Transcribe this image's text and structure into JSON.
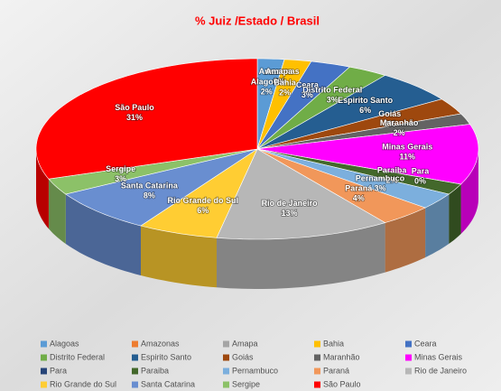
{
  "chart_data": {
    "type": "pie3d",
    "title": "% Juiz /Estado  / Brasil",
    "categories": [
      "Alagoas",
      "Amazonas",
      "Amapa",
      "Bahia",
      "Ceara",
      "Distrito Federal",
      "Espirito Santo",
      "Goiás",
      "Maranhão",
      "Minas Gerais",
      "Para",
      "Paraiba",
      "Pernambuco",
      "Paraná",
      "Rio de Janeiro",
      "Rio Grande do Sul",
      "Santa Catarina",
      "Sergipe",
      "São Paulo"
    ],
    "values": [
      2,
      0,
      0,
      2,
      3,
      3,
      6,
      3,
      2,
      11,
      0,
      2,
      3,
      4,
      13,
      6,
      8,
      3,
      31
    ],
    "value_labels": [
      "2%",
      "0%",
      "0%",
      "2%",
      "3%",
      "3%",
      "6%",
      "3%",
      "2%",
      "11%",
      "0%",
      "2%",
      "3%",
      "4%",
      "13%",
      "6%",
      "8%",
      "3%",
      "31%"
    ],
    "colors": [
      "#5b9bd5",
      "#ed7d31",
      "#a5a5a5",
      "#ffc000",
      "#4472c4",
      "#70ad47",
      "#255e91",
      "#9e480e",
      "#636363",
      "#ff00ff",
      "#264478",
      "#43682b",
      "#7cafdd",
      "#f1975a",
      "#b7b7b7",
      "#ffcd33",
      "#698ed0",
      "#8cc168",
      "#ff0000"
    ]
  }
}
